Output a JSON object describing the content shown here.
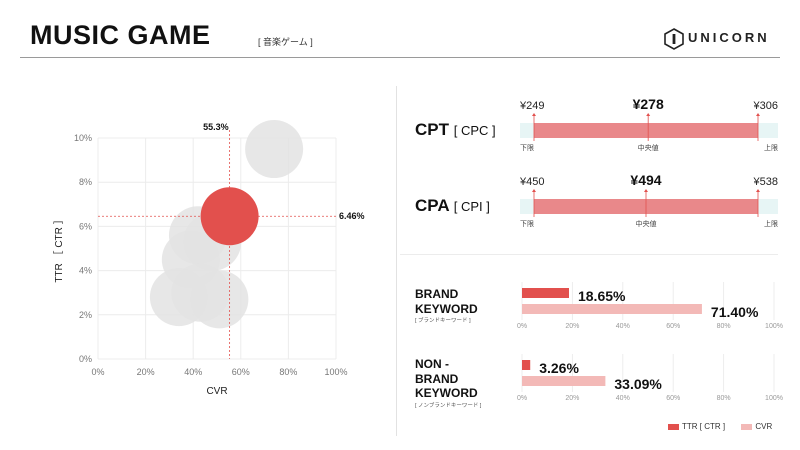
{
  "header": {
    "title": "MUSIC GAME",
    "subtitle": "[ 音楽ゲーム ]",
    "brand": "UNICORN",
    "logo_icon": "unicorn-hexagon-logo"
  },
  "colors": {
    "accent": "#e2504d",
    "accent_light": "#f3b9b7",
    "bar_fill": "#e9888a",
    "bar_track": "#e7f5f5",
    "bubble": "#e3e3e3"
  },
  "chart_data": [
    {
      "type": "scatter",
      "xlabel": "CVR",
      "ylabel": "TTR ［ CTR ］",
      "xlim": [
        0,
        100
      ],
      "ylim": [
        0,
        10
      ],
      "x_unit": "%",
      "y_unit": "%",
      "xticks": [
        "0%",
        "20%",
        "40%",
        "60%",
        "80%",
        "100%"
      ],
      "yticks": [
        "0%",
        "2%",
        "4%",
        "6%",
        "8%",
        "10%"
      ],
      "grid": true,
      "points": [
        {
          "x": 74,
          "y": 9.5,
          "highlight": false
        },
        {
          "x": 42,
          "y": 5.6,
          "highlight": false
        },
        {
          "x": 48,
          "y": 5.3,
          "highlight": false
        },
        {
          "x": 39,
          "y": 4.5,
          "highlight": false
        },
        {
          "x": 34,
          "y": 2.8,
          "highlight": false
        },
        {
          "x": 43,
          "y": 3.0,
          "highlight": false
        },
        {
          "x": 51,
          "y": 2.7,
          "highlight": false
        },
        {
          "x": 55.3,
          "y": 6.46,
          "highlight": true
        }
      ],
      "highlight": {
        "x": 55.3,
        "y": 6.46,
        "x_label": "55.3%",
        "y_label": "6.46%"
      }
    },
    {
      "type": "range",
      "name": "CPT",
      "name_sub": "[ CPC ]",
      "min": 249,
      "median": 278,
      "max": 306,
      "min_label": "¥249",
      "median_label": "¥278",
      "max_label": "¥306",
      "min_caption": "下限",
      "median_caption": "中央値",
      "max_caption": "上限"
    },
    {
      "type": "range",
      "name": "CPA",
      "name_sub": "[ CPI ]",
      "min": 450,
      "median": 494,
      "max": 538,
      "min_label": "¥450",
      "median_label": "¥494",
      "max_label": "¥538",
      "min_caption": "下限",
      "median_caption": "中央値",
      "max_caption": "上限"
    },
    {
      "type": "bar",
      "orientation": "horizontal",
      "name_lines": [
        "BRAND",
        "KEYWORD"
      ],
      "name_sub": "[ ブランドキーワード ]",
      "series": [
        {
          "name": "TTR [ CTR ]",
          "value": 18.65,
          "label": "18.65%"
        },
        {
          "name": "CVR",
          "value": 71.4,
          "label": "71.40%"
        }
      ],
      "xlim": [
        0,
        100
      ],
      "xticks": [
        "0%",
        "20%",
        "40%",
        "60%",
        "80%",
        "100%"
      ]
    },
    {
      "type": "bar",
      "orientation": "horizontal",
      "name_lines": [
        "NON -",
        "BRAND",
        "KEYWORD"
      ],
      "name_sub": "[ ノンブランドキーワード ]",
      "series": [
        {
          "name": "TTR [ CTR ]",
          "value": 3.26,
          "label": "3.26%"
        },
        {
          "name": "CVR",
          "value": 33.09,
          "label": "33.09%"
        }
      ],
      "xlim": [
        0,
        100
      ],
      "xticks": [
        "0%",
        "20%",
        "40%",
        "60%",
        "80%",
        "100%"
      ]
    }
  ],
  "legend": [
    {
      "label": "TTR [ CTR ]",
      "color": "#e2504d"
    },
    {
      "label": "CVR",
      "color": "#f3b9b7"
    }
  ]
}
